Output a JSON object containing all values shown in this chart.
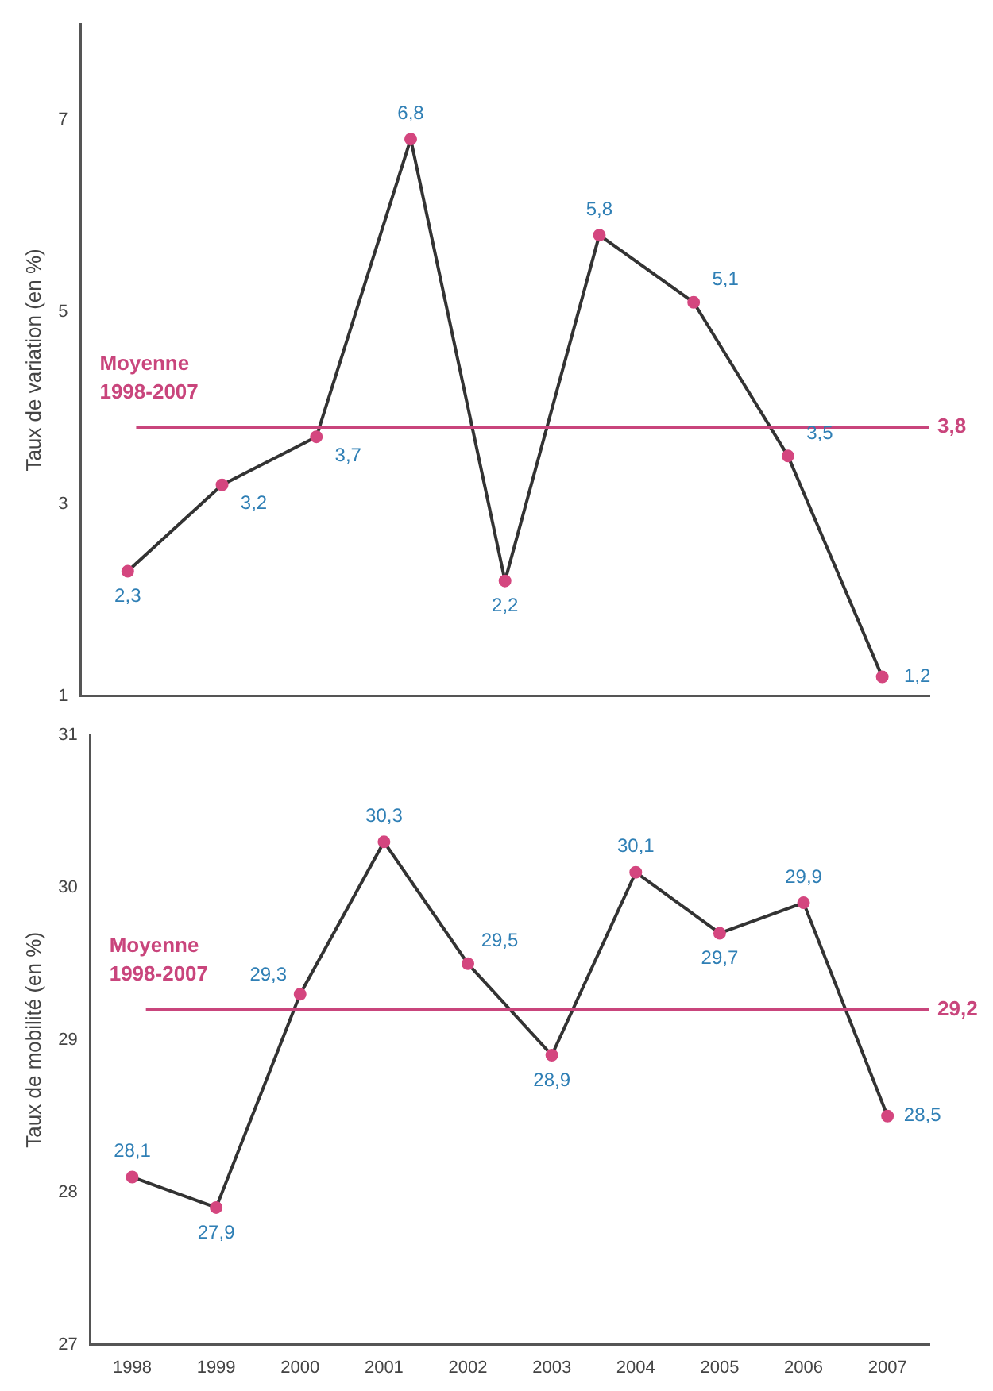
{
  "chart_data": [
    {
      "type": "line",
      "ylabel": "Taux de variation (en %)",
      "categories": [
        null,
        null,
        null,
        null,
        null,
        null,
        null,
        null,
        null
      ],
      "series": [
        {
          "color": "#333333",
          "colors": [
            "#d4467f",
            "#d4467f",
            "#d4467f",
            "#d4467f",
            "#d4467f",
            "#d4467f",
            "#d4467f",
            "#d4467f",
            "#d4467f"
          ],
          "values": [
            2.3,
            3.2,
            3.7,
            6.8,
            2.2,
            5.8,
            5.1,
            3.5,
            1.2
          ],
          "value_labels": [
            "2,3",
            "3,2",
            "3,7",
            "6,8",
            "2,2",
            "5,8",
            "5,1",
            "3,5",
            "1,2"
          ]
        }
      ],
      "marker": "circle",
      "ylim": [
        1,
        8
      ],
      "yticks": [
        1,
        3,
        5,
        7
      ],
      "grid": false,
      "legend": false,
      "tick_labels": "y",
      "ref_lines": [
        {
          "axis": "y",
          "value": 3.8,
          "label": "3,8",
          "color": "#c9457c"
        }
      ],
      "annotations": [
        "Moyenne 1998-2007"
      ]
    },
    {
      "type": "line",
      "ylabel": "Taux de mobilité (en %)",
      "categories": [
        "1998",
        "1999",
        "2000",
        "2001",
        "2002",
        "2003",
        "2004",
        "2005",
        "2006",
        "2007"
      ],
      "series": [
        {
          "color": "#333333",
          "colors": [
            "#d4467f",
            "#d4467f",
            "#d4467f",
            "#d4467f",
            "#d4467f",
            "#d4467f",
            "#d4467f",
            "#d4467f",
            "#d4467f",
            "#d4467f"
          ],
          "values": [
            28.1,
            27.9,
            29.3,
            30.3,
            29.5,
            28.9,
            30.1,
            29.7,
            29.9,
            28.5
          ],
          "value_labels": [
            "28,1",
            "27,9",
            "29,3",
            "30,3",
            "29,5",
            "28,9",
            "30,1",
            "29,7",
            "29,9",
            "28,5"
          ]
        }
      ],
      "marker": "circle",
      "ylim": [
        27,
        31
      ],
      "yticks": [
        27,
        28,
        29,
        30,
        31
      ],
      "grid": false,
      "legend": false,
      "ref_lines": [
        {
          "axis": "y",
          "value": 29.2,
          "label": "29,2",
          "color": "#c9457c"
        }
      ],
      "annotations": [
        "Moyenne 1998-2007"
      ]
    }
  ]
}
